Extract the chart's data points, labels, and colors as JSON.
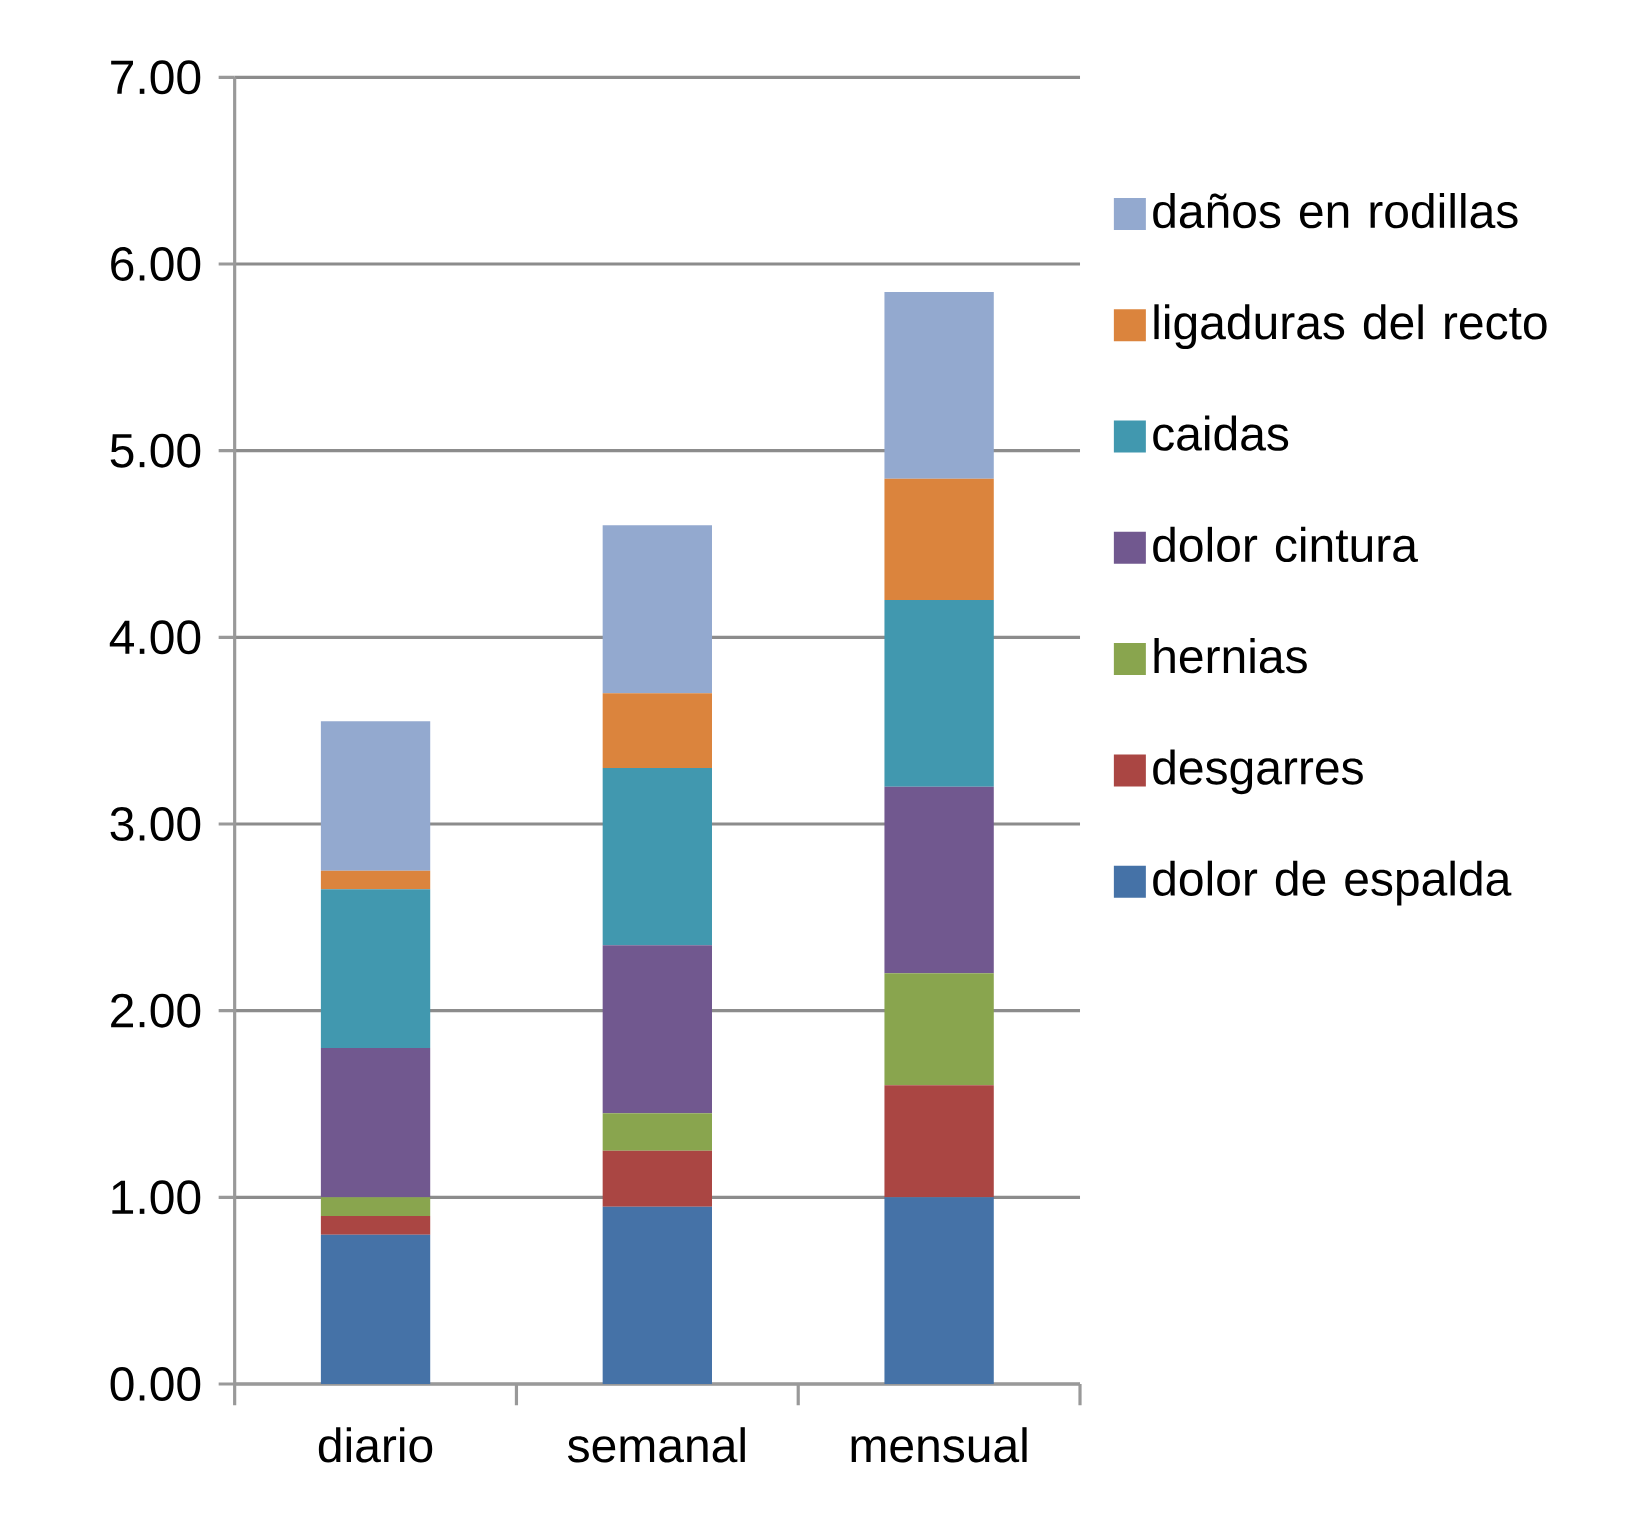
{
  "chart_data": {
    "type": "bar",
    "stacked": true,
    "categories": [
      "diario",
      "semanal",
      "mensual"
    ],
    "series": [
      {
        "name": "dolor de espalda",
        "color": "#4572a7",
        "values": [
          0.8,
          0.95,
          1.0
        ]
      },
      {
        "name": "desgarres",
        "color": "#aa4643",
        "values": [
          0.1,
          0.3,
          0.6
        ]
      },
      {
        "name": "hernias",
        "color": "#89a54e",
        "values": [
          0.1,
          0.2,
          0.6
        ]
      },
      {
        "name": "dolor cintura",
        "color": "#71588f",
        "values": [
          0.8,
          0.9,
          1.0
        ]
      },
      {
        "name": "caidas",
        "color": "#4198af",
        "values": [
          0.85,
          0.95,
          1.0
        ]
      },
      {
        "name": "ligaduras del recto",
        "color": "#db843d",
        "values": [
          0.1,
          0.4,
          0.65
        ]
      },
      {
        "name": "daños en rodillas",
        "color": "#93a9cf",
        "values": [
          0.8,
          0.9,
          1.0
        ]
      }
    ],
    "ylim": [
      0,
      7
    ],
    "yticks": [
      {
        "value": 0,
        "label": "0.00"
      },
      {
        "value": 1,
        "label": "1.00"
      },
      {
        "value": 2,
        "label": "2.00"
      },
      {
        "value": 3,
        "label": "3.00"
      },
      {
        "value": 4,
        "label": "4.00"
      },
      {
        "value": 5,
        "label": "5.00"
      },
      {
        "value": 6,
        "label": "6.00"
      },
      {
        "value": 7,
        "label": "7.00"
      }
    ],
    "grid": "y",
    "legend": "right"
  }
}
